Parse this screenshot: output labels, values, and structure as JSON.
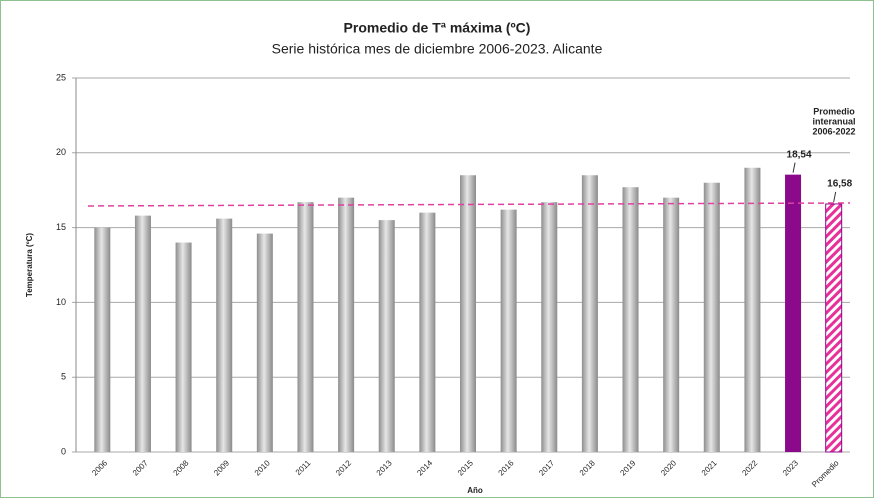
{
  "chart_data": {
    "type": "bar",
    "title": "Promedio de Tª máxima (ºC)",
    "subtitle": "Serie histórica mes de diciembre 2006-2023. Alicante",
    "y_label": "Temperatura (ºC)",
    "x_label": "Año",
    "categories": [
      "2006",
      "2007",
      "2008",
      "2009",
      "2010",
      "2011",
      "2012",
      "2013",
      "2014",
      "2015",
      "2016",
      "2017",
      "2018",
      "2019",
      "2020",
      "2021",
      "2022",
      "2023",
      "Promedio"
    ],
    "values": [
      15.0,
      15.8,
      14.0,
      15.6,
      14.6,
      16.7,
      17.0,
      15.5,
      16.0,
      18.5,
      16.2,
      16.7,
      18.5,
      17.7,
      17.0,
      18.0,
      19.0,
      18.54,
      16.58
    ],
    "value_labels": [
      null,
      null,
      null,
      null,
      null,
      null,
      null,
      null,
      null,
      null,
      null,
      null,
      null,
      null,
      null,
      null,
      null,
      "18,54",
      "16,58"
    ],
    "colors": [
      "#b4b4b4",
      "#b4b4b4",
      "#b4b4b4",
      "#b4b4b4",
      "#b4b4b4",
      "#b4b4b4",
      "#b4b4b4",
      "#b4b4b4",
      "#b4b4b4",
      "#b4b4b4",
      "#b4b4b4",
      "#b4b4b4",
      "#b4b4b4",
      "#b4b4b4",
      "#b4b4b4",
      "#b4b4b4",
      "#b4b4b4",
      "#8b0a8b",
      "#e8309a"
    ],
    "patterns": [
      "gradient",
      "gradient",
      "gradient",
      "gradient",
      "gradient",
      "gradient",
      "gradient",
      "gradient",
      "gradient",
      "gradient",
      "gradient",
      "gradient",
      "gradient",
      "gradient",
      "gradient",
      "gradient",
      "gradient",
      "solid",
      "hatch"
    ],
    "reference_line": {
      "value": 16.58,
      "color": "#e040a0",
      "dashed": true
    },
    "annotation": [
      "Promedio",
      "interanual",
      "2006-2022"
    ],
    "annotation_color": "#c0189a",
    "ylim": [
      0,
      25
    ],
    "yticks": [
      0,
      5,
      10,
      15,
      20,
      25
    ],
    "grid": true
  }
}
